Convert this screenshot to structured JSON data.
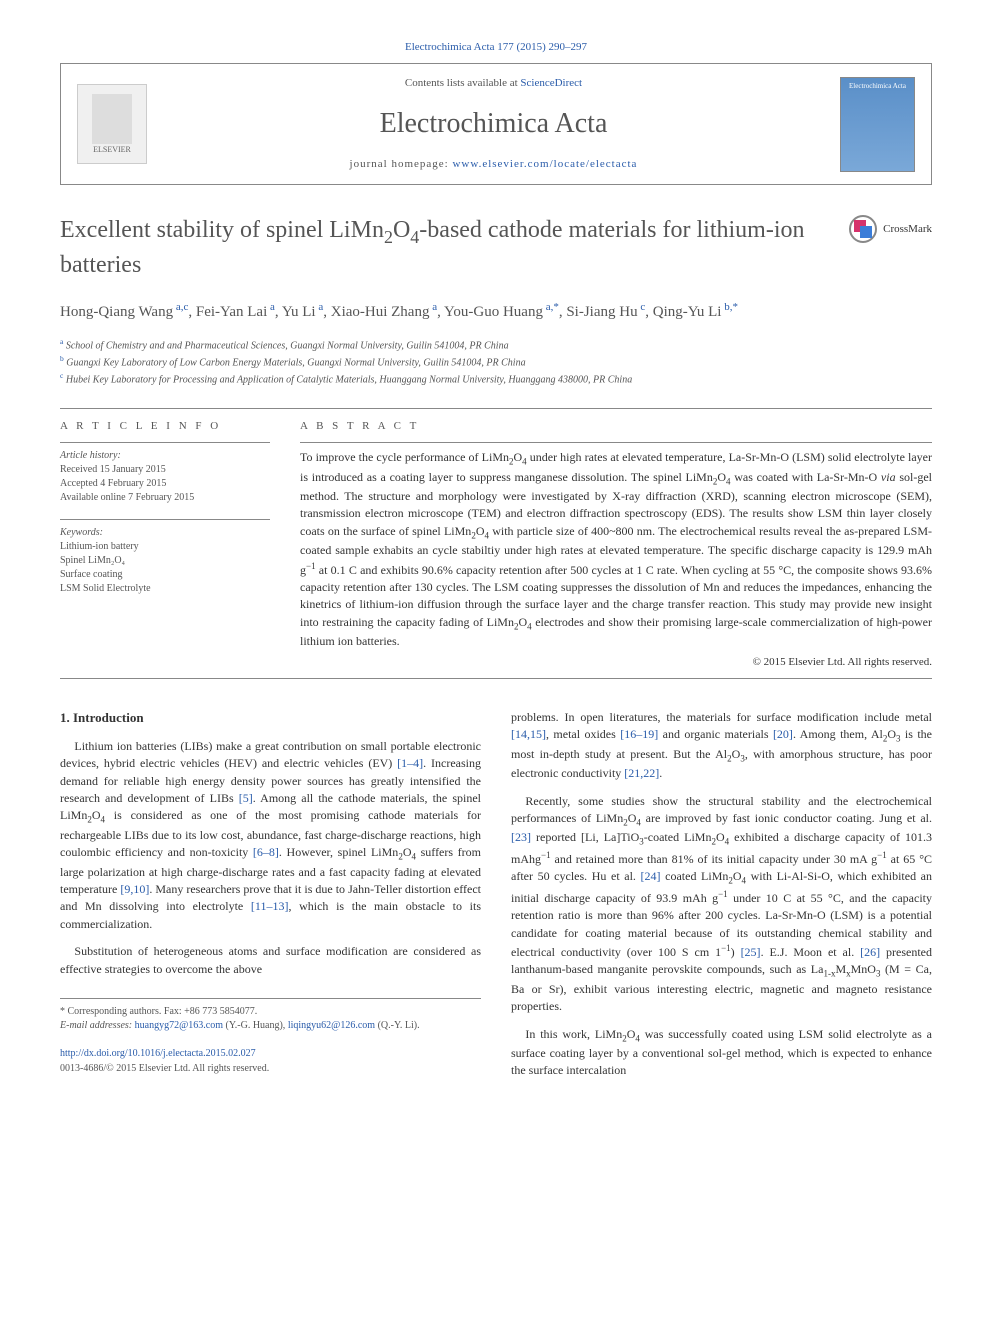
{
  "header": {
    "citation": "Electrochimica Acta 177 (2015) 290–297",
    "contents_prefix": "Contents lists available at ",
    "contents_link": "ScienceDirect",
    "journal_title": "Electrochimica Acta",
    "homepage_prefix": "journal homepage: ",
    "homepage_link": "www.elsevier.com/locate/electacta",
    "elsevier_label": "ELSEVIER",
    "cover_label": "Electrochimica Acta"
  },
  "article": {
    "title_html": "Excellent stability of spinel LiMn<sub>2</sub>O<sub>4</sub>-based cathode materials for lithium-ion batteries",
    "crossmark_label": "CrossMark",
    "authors_html": "Hong-Qiang Wang<span class='affil-link'> a,c</span>, Fei-Yan Lai<span class='affil-link'> a</span>, Yu Li<span class='affil-link'> a</span>, Xiao-Hui Zhang<span class='affil-link'> a</span>, You-Guo Huang<span class='affil-link'> a,*</span>, Si-Jiang Hu<span class='affil-link'> c</span>, Qing-Yu Li<span class='affil-link'> b,*</span>",
    "affiliations": [
      {
        "label": "a",
        "text": "School of Chemistry and and Pharmaceutical Sciences, Guangxi Normal University, Guilin 541004, PR China"
      },
      {
        "label": "b",
        "text": "Guangxi Key Laboratory of Low Carbon Energy Materials, Guangxi Normal University, Guilin 541004, PR China"
      },
      {
        "label": "c",
        "text": "Hubei Key Laboratory for Processing and Application of Catalytic Materials, Huanggang Normal University, Huanggang 438000, PR China"
      }
    ]
  },
  "info": {
    "heading": "A R T I C L E  I N F O",
    "history_label": "Article history:",
    "history": [
      "Received 15 January 2015",
      "Accepted 4 February 2015",
      "Available online 7 February 2015"
    ],
    "keywords_label": "Keywords:",
    "keywords": [
      "Lithium-ion battery",
      "Spinel LiMn₂O₄",
      "Surface coating",
      "LSM Solid Electrolyte"
    ]
  },
  "abstract": {
    "heading": "A B S T R A C T",
    "text_html": "To improve the cycle performance of LiMn<sub>2</sub>O<sub>4</sub> under high rates at elevated temperature, La-Sr-Mn-O (LSM) solid electrolyte layer is introduced as a coating layer to suppress manganese dissolution. The spinel LiMn<sub>2</sub>O<sub>4</sub> was coated with La-Sr-Mn-O <i>via</i> sol-gel method. The structure and morphology were investigated by X-ray diffraction (XRD), scanning electron microscope (SEM), transmission electron microscope (TEM) and electron diffraction spectroscopy (EDS). The results show LSM thin layer closely coats on the surface of spinel LiMn<sub>2</sub>O<sub>4</sub> with particle size of 400~800 nm. The electrochemical results reveal the as-prepared LSM-coated sample exhabits an cycle stabiltiy under high rates at elevated temperature. The specific discharge capacity is 129.9 mAh g<sup>−1</sup> at 0.1 C and exhibits 90.6% capacity retention after 500 cycles at 1 C rate. When cycling at 55 °C, the composite shows 93.6% capacity retention after 130 cycles. The LSM coating suppresses the dissolution of Mn and reduces the impedances, enhancing the kinetrics of lithium-ion diffusion through the surface layer and the charge transfer reaction. This study may provide new insight into restraining the capacity fading of LiMn<sub>2</sub>O<sub>4</sub> electrodes and show their promising large-scale commercialization of high-power lithium ion batteries.",
    "copyright": "© 2015 Elsevier Ltd. All rights reserved."
  },
  "body": {
    "section_heading": "1. Introduction",
    "left_paragraphs_html": [
      "Lithium ion batteries (LIBs) make a great contribution on small portable electronic devices, hybrid electric vehicles (HEV) and electric vehicles (EV) <span class='ref-link'>[1–4]</span>. Increasing demand for reliable high energy density power sources has greatly intensified the research and development of LIBs <span class='ref-link'>[5]</span>. Among all the cathode materials, the spinel LiMn<sub>2</sub>O<sub>4</sub> is considered as one of the most promising cathode materials for rechargeable LIBs due to its low cost, abundance, fast charge-discharge reactions, high coulombic efficiency and non-toxicity <span class='ref-link'>[6–8]</span>. However, spinel LiMn<sub>2</sub>O<sub>4</sub> suffers from large polarization at high charge-discharge rates and a fast capacity fading at elevated temperature <span class='ref-link'>[9,10]</span>. Many researchers prove that it is due to Jahn-Teller distortion effect and Mn dissolving into electrolyte <span class='ref-link'>[11–13]</span>, which is the main obstacle to its commercialization.",
      "Substitution of heterogeneous atoms and surface modification are considered as effective strategies to overcome the above"
    ],
    "right_paragraphs_html": [
      "problems. In open literatures, the materials for surface modification include metal <span class='ref-link'>[14,15]</span>, metal oxides <span class='ref-link'>[16–19]</span> and organic materials <span class='ref-link'>[20]</span>. Among them, Al<sub>2</sub>O<sub>3</sub> is the most in-depth study at present. But the Al<sub>2</sub>O<sub>3</sub>, with amorphous structure, has poor electronic conductivity <span class='ref-link'>[21,22]</span>.",
      "Recently, some studies show the structural stability and the electrochemical performances of LiMn<sub>2</sub>O<sub>4</sub> are improved by fast ionic conductor coating. Jung et al. <span class='ref-link'>[23]</span> reported [Li, La]TiO<sub>3</sub>-coated LiMn<sub>2</sub>O<sub>4</sub> exhibited a discharge capacity of 101.3 mAhg<sup>−1</sup> and retained more than 81% of its initial capacity under 30 mA g<sup>−1</sup> at 65 °C after 50 cycles. Hu et al. <span class='ref-link'>[24]</span> coated LiMn<sub>2</sub>O<sub>4</sub> with Li-Al-Si-O, which exhibited an initial discharge capacity of 93.9 mAh g<sup>−1</sup> under 10 C at 55 °C, and the capacity retention ratio is more than 96% after 200 cycles. La-Sr-Mn-O (LSM) is a potential candidate for coating material because of its outstanding chemical stability and electrical conductivity (over 100 S cm 1<sup>−1</sup>) <span class='ref-link'>[25]</span>. E.J. Moon et al. <span class='ref-link'>[26]</span> presented lanthanum-based manganite perovskite compounds, such as La<sub>1-x</sub>M<sub>x</sub>MnO<sub>3</sub> (M = Ca, Ba or Sr), exhibit various interesting electric, magnetic and magneto resistance properties.",
      "In this work, LiMn<sub>2</sub>O<sub>4</sub> was successfully coated using LSM solid electrolyte as a surface coating layer by a conventional sol-gel method, which is expected to enhance the surface intercalation"
    ]
  },
  "footnote": {
    "corr_label": "* Corresponding authors. Fax: +86 773 5854077.",
    "email_label": "E-mail addresses: ",
    "emails_html": "<a>huangyg72@163.com</a> (Y.-G. Huang), <a>liqingyu62@126.com</a> (Q.-Y. Li).",
    "doi_link": "http://dx.doi.org/10.1016/j.electacta.2015.02.027",
    "issn_copyright": "0013-4686/© 2015 Elsevier Ltd. All rights reserved."
  },
  "colors": {
    "link": "#2a5caa",
    "text": "#333333",
    "muted": "#555555",
    "rule": "#888888"
  }
}
